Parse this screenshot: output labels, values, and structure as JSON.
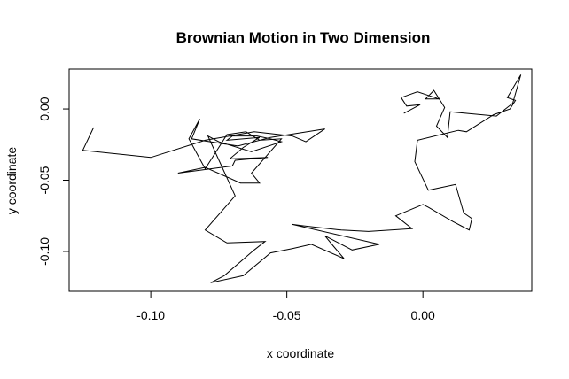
{
  "chart_data": {
    "type": "line",
    "title": "Brownian Motion in Two Dimension",
    "xlabel": "x coordinate",
    "ylabel": "y coordinate",
    "xlim": [
      -0.13,
      0.04
    ],
    "ylim": [
      -0.128,
      0.028
    ],
    "x_ticks": [
      -0.1,
      -0.05,
      0.0
    ],
    "x_tick_labels": [
      "-0.10",
      "-0.05",
      "0.00"
    ],
    "y_ticks": [
      0.0,
      -0.05,
      -0.1
    ],
    "y_tick_labels": [
      "0.00",
      "-0.05",
      "-0.10"
    ],
    "grid": false,
    "line_color": "#000000",
    "series": [
      {
        "x": [
          -0.121,
          -0.125,
          -0.1,
          -0.08,
          -0.062,
          -0.048,
          -0.043,
          -0.036,
          -0.056,
          -0.068,
          -0.085,
          -0.082,
          -0.086,
          -0.08,
          -0.072,
          -0.065,
          -0.06,
          -0.052,
          -0.063,
          -0.06,
          -0.067,
          -0.08,
          -0.09,
          -0.07,
          -0.069,
          -0.057,
          -0.071,
          -0.066,
          -0.06,
          -0.072,
          -0.07,
          -0.061,
          -0.056,
          -0.052,
          -0.063,
          -0.075,
          -0.079,
          -0.069,
          -0.08,
          -0.072,
          -0.058,
          -0.062,
          -0.073,
          -0.078,
          -0.066,
          -0.056,
          -0.048,
          -0.041,
          -0.029,
          -0.033,
          -0.036,
          -0.026,
          -0.016,
          -0.048,
          -0.044,
          -0.03,
          -0.02,
          -0.004,
          -0.01,
          0.0,
          0.002,
          0.011,
          0.014,
          0.017,
          0.018,
          0.015,
          0.012,
          0.002,
          -0.003,
          -0.002,
          0.013,
          0.016,
          0.026,
          0.032,
          0.034,
          0.031,
          0.036,
          0.033,
          0.027,
          0.01,
          0.009,
          0.005,
          0.008,
          0.004,
          0.001,
          0.006,
          -0.002,
          -0.008,
          -0.006,
          -0.001,
          -0.007
        ],
        "y": [
          -0.013,
          -0.029,
          -0.034,
          -0.022,
          -0.016,
          -0.019,
          -0.023,
          -0.014,
          -0.02,
          -0.026,
          -0.021,
          -0.007,
          -0.021,
          -0.042,
          -0.018,
          -0.016,
          -0.022,
          -0.021,
          -0.045,
          -0.052,
          -0.052,
          -0.041,
          -0.045,
          -0.04,
          -0.036,
          -0.034,
          -0.035,
          -0.027,
          -0.02,
          -0.022,
          -0.019,
          -0.019,
          -0.021,
          -0.023,
          -0.03,
          -0.023,
          -0.019,
          -0.061,
          -0.085,
          -0.094,
          -0.093,
          -0.099,
          -0.117,
          -0.122,
          -0.117,
          -0.101,
          -0.098,
          -0.095,
          -0.105,
          -0.096,
          -0.089,
          -0.099,
          -0.095,
          -0.081,
          -0.082,
          -0.085,
          -0.086,
          -0.084,
          -0.075,
          -0.067,
          -0.069,
          -0.079,
          -0.082,
          -0.085,
          -0.077,
          -0.073,
          -0.053,
          -0.057,
          -0.037,
          -0.022,
          -0.015,
          -0.016,
          -0.004,
          0.0,
          0.006,
          0.008,
          0.024,
          0.004,
          -0.005,
          -0.002,
          -0.02,
          -0.012,
          0.001,
          0.013,
          0.007,
          0.007,
          0.012,
          0.008,
          0.002,
          0.003,
          -0.003
        ]
      }
    ]
  }
}
